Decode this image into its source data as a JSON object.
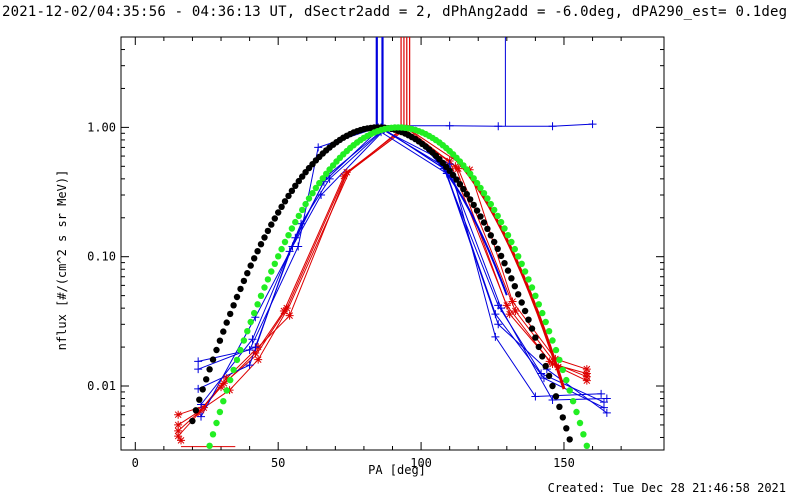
{
  "chart_data": {
    "type": "line",
    "title": "2021-12-02/04:35:56 - 04:36:13 UT, dSectr2add = 2, dPhAng2add = -6.0deg, dPA290_est=  0.1deg",
    "xlabel": "PA [deg]",
    "ylabel": "nflux [#/(cm^2 s sr MeV)]",
    "xlim": [
      -5,
      185
    ],
    "ylim": [
      0.0032,
      5
    ],
    "yscale": "log",
    "x_ticks": [
      0,
      50,
      100,
      150
    ],
    "x_tick_labels": [
      "0",
      "50",
      "100",
      "150"
    ],
    "y_ticks": [
      0.01,
      0.1,
      1.0
    ],
    "y_tick_labels": [
      "0.01",
      "0.10",
      "1.00"
    ],
    "grid": false,
    "colors": {
      "red": "#dd0000",
      "blue": "#0000dd",
      "black": "#000000",
      "green": "#22ee22"
    },
    "red_series": [
      [
        [
          15,
          0.0045
        ],
        [
          22,
          0.0062
        ],
        [
          30,
          0.0098
        ],
        [
          42,
          0.018
        ],
        [
          52,
          0.038
        ],
        [
          73,
          0.42
        ],
        [
          93,
          0.97
        ],
        [
          110,
          0.55
        ],
        [
          130,
          0.042
        ],
        [
          145,
          0.0155
        ],
        [
          158,
          0.0118
        ]
      ],
      [
        [
          15,
          0.005
        ],
        [
          23,
          0.0065
        ],
        [
          31,
          0.0105
        ],
        [
          42,
          0.017
        ],
        [
          53,
          0.04
        ],
        [
          74,
          0.45
        ],
        [
          94,
          0.98
        ],
        [
          112,
          0.5
        ],
        [
          131,
          0.036
        ],
        [
          146,
          0.0148
        ],
        [
          158,
          0.0125
        ]
      ],
      [
        [
          15,
          0.006
        ],
        [
          24,
          0.007
        ],
        [
          32,
          0.0115
        ],
        [
          43,
          0.02
        ],
        [
          54,
          0.035
        ],
        [
          74,
          0.44
        ],
        [
          95,
          0.99
        ],
        [
          117,
          0.47
        ],
        [
          132,
          0.045
        ],
        [
          147,
          0.0162
        ],
        [
          158,
          0.0135
        ]
      ],
      [
        [
          15,
          0.0041
        ],
        [
          24,
          0.0068
        ],
        [
          33,
          0.0093
        ],
        [
          43,
          0.016
        ],
        [
          54,
          0.042
        ],
        [
          75,
          0.46
        ],
        [
          95,
          0.985
        ],
        [
          113,
          0.48
        ],
        [
          133,
          0.038
        ],
        [
          148,
          0.014
        ],
        [
          158,
          0.011
        ]
      ],
      [
        [
          16,
          0.0034
        ],
        [
          32,
          0.0034
        ],
        [
          35,
          0.0034
        ]
      ]
    ],
    "red_markers": [
      [
        15,
        0.0045
      ],
      [
        15,
        0.005
      ],
      [
        15,
        0.006
      ],
      [
        15,
        0.0041
      ],
      [
        16,
        0.0038
      ],
      [
        22,
        0.0062
      ],
      [
        23,
        0.0065
      ],
      [
        24,
        0.0068
      ],
      [
        30,
        0.0098
      ],
      [
        31,
        0.0105
      ],
      [
        32,
        0.0115
      ],
      [
        33,
        0.0093
      ],
      [
        42,
        0.018
      ],
      [
        43,
        0.016
      ],
      [
        43,
        0.02
      ],
      [
        52,
        0.038
      ],
      [
        53,
        0.04
      ],
      [
        54,
        0.035
      ],
      [
        73,
        0.42
      ],
      [
        74,
        0.45
      ],
      [
        93,
        0.97
      ],
      [
        94,
        0.98
      ],
      [
        95,
        0.99
      ],
      [
        110,
        0.55
      ],
      [
        112,
        0.5
      ],
      [
        113,
        0.48
      ],
      [
        117,
        0.47
      ],
      [
        130,
        0.042
      ],
      [
        131,
        0.036
      ],
      [
        132,
        0.045
      ],
      [
        133,
        0.038
      ],
      [
        145,
        0.0155
      ],
      [
        146,
        0.0148
      ],
      [
        147,
        0.0162
      ],
      [
        148,
        0.014
      ],
      [
        158,
        0.0118
      ],
      [
        158,
        0.0125
      ],
      [
        158,
        0.0135
      ],
      [
        158,
        0.011
      ]
    ],
    "blue_series": [
      [
        [
          22,
          0.0155
        ],
        [
          40,
          0.019
        ],
        [
          57,
          0.12
        ],
        [
          64,
          0.7
        ],
        [
          85,
          1.0
        ],
        [
          110,
          0.52
        ],
        [
          126,
          0.024
        ],
        [
          140,
          0.0083
        ],
        [
          163,
          0.0087
        ]
      ],
      [
        [
          22,
          0.0095
        ],
        [
          40,
          0.0145
        ],
        [
          54,
          0.11
        ],
        [
          66,
          0.38
        ],
        [
          86,
          1.0
        ],
        [
          108,
          0.48
        ],
        [
          127,
          0.042
        ],
        [
          142,
          0.0125
        ],
        [
          164,
          0.0075
        ]
      ],
      [
        [
          23,
          0.0072
        ],
        [
          41,
          0.023
        ],
        [
          58,
          0.18
        ],
        [
          68,
          0.4
        ],
        [
          86,
          0.92
        ],
        [
          109,
          0.44
        ],
        [
          126,
          0.036
        ],
        [
          143,
          0.0115
        ],
        [
          164,
          0.0068
        ]
      ],
      [
        [
          23,
          0.0058
        ],
        [
          42,
          0.034
        ],
        [
          55,
          0.12
        ],
        [
          65,
          0.3
        ],
        [
          87,
          0.95
        ],
        [
          108,
          0.5
        ],
        [
          127,
          0.03
        ],
        [
          144,
          0.0135
        ],
        [
          165,
          0.0062
        ]
      ],
      [
        [
          22,
          0.0135
        ],
        [
          42,
          0.02
        ],
        [
          56,
          0.14
        ],
        [
          67,
          0.42
        ],
        [
          87,
          0.97
        ],
        [
          110,
          0.45
        ],
        [
          128,
          0.04
        ],
        [
          146,
          0.0078
        ],
        [
          165,
          0.008
        ]
      ],
      [
        [
          88,
          1.03
        ],
        [
          110,
          1.03
        ],
        [
          127,
          1.02
        ],
        [
          146,
          1.02
        ],
        [
          160,
          1.06
        ]
      ]
    ],
    "blue_markers": [
      [
        22,
        0.0155
      ],
      [
        22,
        0.0095
      ],
      [
        23,
        0.0072
      ],
      [
        23,
        0.0058
      ],
      [
        22,
        0.0135
      ],
      [
        40,
        0.019
      ],
      [
        40,
        0.0145
      ],
      [
        41,
        0.023
      ],
      [
        42,
        0.034
      ],
      [
        42,
        0.02
      ],
      [
        54,
        0.11
      ],
      [
        57,
        0.12
      ],
      [
        58,
        0.18
      ],
      [
        55,
        0.12
      ],
      [
        56,
        0.14
      ],
      [
        64,
        0.7
      ],
      [
        66,
        0.38
      ],
      [
        68,
        0.4
      ],
      [
        65,
        0.3
      ],
      [
        67,
        0.42
      ],
      [
        85,
        1.0
      ],
      [
        86,
        1.0
      ],
      [
        86,
        0.92
      ],
      [
        87,
        0.95
      ],
      [
        87,
        0.97
      ],
      [
        108,
        0.48
      ],
      [
        109,
        0.44
      ],
      [
        108,
        0.5
      ],
      [
        110,
        0.45
      ],
      [
        110,
        0.52
      ],
      [
        126,
        0.024
      ],
      [
        127,
        0.042
      ],
      [
        126,
        0.036
      ],
      [
        127,
        0.03
      ],
      [
        128,
        0.04
      ],
      [
        140,
        0.0083
      ],
      [
        142,
        0.0125
      ],
      [
        143,
        0.0115
      ],
      [
        144,
        0.0135
      ],
      [
        146,
        0.0078
      ],
      [
        163,
        0.0087
      ],
      [
        164,
        0.0075
      ],
      [
        164,
        0.0068
      ],
      [
        165,
        0.0062
      ],
      [
        165,
        0.008
      ],
      [
        110,
        1.03
      ],
      [
        127,
        1.02
      ],
      [
        146,
        1.02
      ],
      [
        160,
        1.06
      ]
    ],
    "blue_vertical_x": [
      84.5,
      86.5,
      129.5
    ],
    "red_vertical_x": [
      93,
      94,
      95,
      96
    ],
    "black_fit": {
      "center": 85,
      "sigma": 20.1
    },
    "green_fit": {
      "center": 92,
      "sigma": 19.6
    }
  },
  "footer": {
    "created": "Created: Tue Dec 28 21:46:58 2021"
  }
}
